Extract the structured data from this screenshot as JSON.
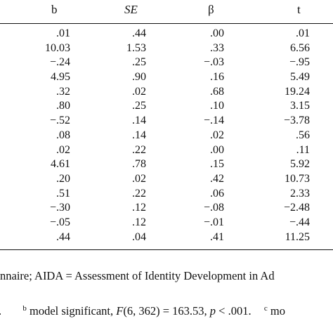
{
  "table": {
    "headers": {
      "b": "b",
      "se": "SE",
      "beta": "β",
      "t": "t"
    },
    "rows": [
      {
        "b": ".01",
        "se": ".44",
        "beta": ".00",
        "t": ".01"
      },
      {
        "b": "10.03",
        "se": "1.53",
        "beta": ".33",
        "t": "6.56"
      },
      {
        "b": "−.24",
        "se": ".25",
        "beta": "−.03",
        "t": "−.95"
      },
      {
        "b": "4.95",
        "se": ".90",
        "beta": ".16",
        "t": "5.49"
      },
      {
        "b": ".32",
        "se": ".02",
        "beta": ".68",
        "t": "19.24"
      },
      {
        "b": ".80",
        "se": ".25",
        "beta": ".10",
        "t": "3.15"
      },
      {
        "b": "−.52",
        "se": ".14",
        "beta": "−.14",
        "t": "−3.78"
      },
      {
        "b": ".08",
        "se": ".14",
        "beta": ".02",
        "t": ".56"
      },
      {
        "b": ".02",
        "se": ".22",
        "beta": ".00",
        "t": ".11"
      },
      {
        "b": "4.61",
        "se": ".78",
        "beta": ".15",
        "t": "5.92"
      },
      {
        "b": ".20",
        "se": ".02",
        "beta": ".42",
        "t": "10.73"
      },
      {
        "b": ".51",
        "se": ".22",
        "beta": ".06",
        "t": "2.33"
      },
      {
        "b": "−.30",
        "se": ".12",
        "beta": "−.08",
        "t": "−2.48"
      },
      {
        "b": "−.05",
        "se": ".12",
        "beta": "−.01",
        "t": "−.44"
      },
      {
        "b": ".44",
        "se": ".04",
        "beta": ".41",
        "t": "11.25"
      }
    ]
  },
  "notes": {
    "line1": "nnaire; AIDA = Assessment of Identity Development in Ad",
    "line2_pre": ".",
    "line2_sup_b": "b",
    "line2_text_a": " model significant, ",
    "line2_F": "F",
    "line2_text_b": "(6, 362) = 163.53, ",
    "line2_p": "p",
    "line2_text_c": " < .001.",
    "line2_sup_c": "c",
    "line2_tail": " mo"
  }
}
